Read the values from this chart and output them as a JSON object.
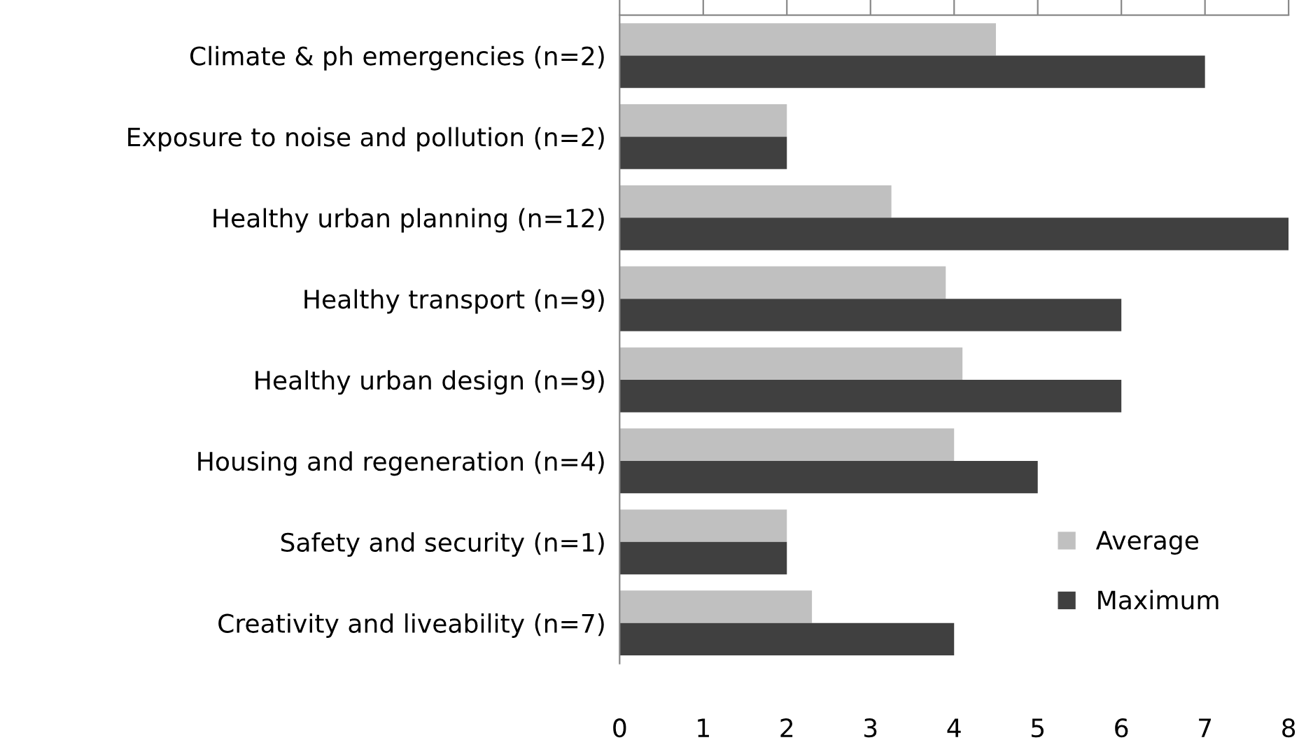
{
  "chart_data": {
    "type": "bar",
    "orientation": "horizontal",
    "categories": [
      "Climate & ph emergencies (n=2)",
      "Exposure to noise and pollution (n=2)",
      "Healthy urban planning (n=12)",
      "Healthy transport (n=9)",
      "Healthy urban design (n=9)",
      "Housing and regeneration (n=4)",
      "Safety and security (n=1)",
      "Creativity and liveability (n=7)"
    ],
    "series": [
      {
        "name": "Average",
        "color": "#c0c0c0",
        "values": [
          4.5,
          2,
          3.25,
          3.9,
          4.1,
          4,
          2,
          2.3
        ]
      },
      {
        "name": "Maximum",
        "color": "#404040",
        "values": [
          7,
          2,
          8,
          6,
          6,
          5,
          2,
          4
        ]
      }
    ],
    "xlim": [
      0,
      8
    ],
    "xticks": [
      0,
      1,
      2,
      3,
      4,
      5,
      6,
      7,
      8
    ],
    "grid": false,
    "legend": "bottom right"
  }
}
